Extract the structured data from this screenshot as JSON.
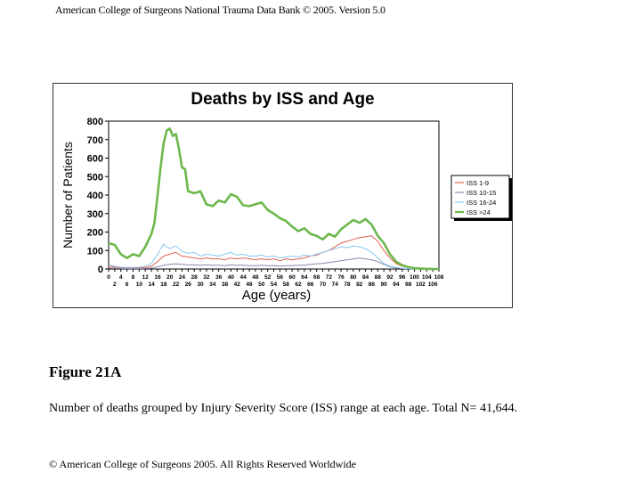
{
  "header": {
    "text": "American College of Surgeons National Trauma Data Bank © 2005. Version 5.0"
  },
  "figure": {
    "label": "Figure 21A",
    "caption": "Number of deaths grouped by Injury Severity Score (ISS) range at each age. Total N= 41,644."
  },
  "footer": {
    "text": "© American College of Surgeons 2005. All Rights Reserved Worldwide"
  },
  "chart_data": {
    "type": "line",
    "title": "Deaths by ISS and Age",
    "xlabel": "Age (years)",
    "ylabel": "Number of Patients",
    "xlim": [
      0,
      108
    ],
    "ylim": [
      0,
      800
    ],
    "yticks": [
      0,
      100,
      200,
      300,
      400,
      500,
      600,
      700,
      800
    ],
    "xticks_top": [
      0,
      4,
      8,
      12,
      16,
      20,
      24,
      28,
      32,
      36,
      40,
      44,
      48,
      52,
      56,
      60,
      64,
      68,
      72,
      76,
      80,
      84,
      88,
      92,
      96,
      100,
      104,
      108
    ],
    "xticks_bottom": [
      2,
      6,
      10,
      14,
      18,
      22,
      26,
      30,
      34,
      38,
      42,
      46,
      50,
      54,
      58,
      62,
      66,
      70,
      74,
      78,
      82,
      86,
      90,
      94,
      98,
      102,
      106
    ],
    "grid": false,
    "legend": "right",
    "series": [
      {
        "name": "ISS 1-9",
        "color": "#e06050",
        "x": [
          0,
          2,
          4,
          6,
          8,
          10,
          12,
          14,
          16,
          18,
          20,
          22,
          24,
          26,
          28,
          30,
          32,
          34,
          36,
          38,
          40,
          42,
          44,
          46,
          48,
          50,
          52,
          54,
          56,
          58,
          60,
          62,
          64,
          66,
          68,
          70,
          72,
          74,
          76,
          78,
          80,
          82,
          84,
          86,
          88,
          90,
          92,
          94,
          96,
          98,
          100,
          102,
          104,
          106,
          108
        ],
        "values": [
          15,
          10,
          8,
          5,
          5,
          5,
          8,
          15,
          40,
          70,
          80,
          90,
          70,
          65,
          60,
          55,
          60,
          55,
          55,
          50,
          60,
          55,
          60,
          55,
          50,
          55,
          50,
          55,
          45,
          55,
          50,
          55,
          60,
          70,
          75,
          90,
          100,
          120,
          140,
          150,
          160,
          170,
          175,
          180,
          150,
          100,
          60,
          30,
          15,
          8,
          4,
          2,
          1,
          0,
          0
        ]
      },
      {
        "name": "ISS 10-15",
        "color": "#8888aa",
        "x": [
          0,
          2,
          4,
          6,
          8,
          10,
          12,
          14,
          16,
          18,
          20,
          22,
          24,
          26,
          28,
          30,
          32,
          34,
          36,
          38,
          40,
          42,
          44,
          46,
          48,
          50,
          52,
          54,
          56,
          58,
          60,
          62,
          64,
          66,
          68,
          70,
          72,
          74,
          76,
          78,
          80,
          82,
          84,
          86,
          88,
          90,
          92,
          94,
          96,
          98,
          100,
          102,
          104,
          106,
          108
        ],
        "values": [
          5,
          4,
          3,
          2,
          2,
          2,
          3,
          5,
          12,
          20,
          25,
          28,
          25,
          22,
          22,
          20,
          22,
          20,
          20,
          18,
          22,
          20,
          20,
          18,
          18,
          20,
          18,
          18,
          16,
          18,
          18,
          20,
          20,
          25,
          28,
          30,
          35,
          40,
          45,
          50,
          55,
          60,
          55,
          50,
          40,
          25,
          12,
          6,
          3,
          2,
          1,
          0,
          0,
          0,
          0
        ]
      },
      {
        "name": "ISS 16-24",
        "color": "#88c8f0",
        "x": [
          0,
          2,
          4,
          6,
          8,
          10,
          12,
          14,
          16,
          18,
          20,
          22,
          24,
          26,
          28,
          30,
          32,
          34,
          36,
          38,
          40,
          42,
          44,
          46,
          48,
          50,
          52,
          54,
          56,
          58,
          60,
          62,
          64,
          66,
          68,
          70,
          72,
          74,
          76,
          78,
          80,
          82,
          84,
          86,
          88,
          90,
          92,
          94,
          96,
          98,
          100,
          102,
          104,
          106,
          108
        ],
        "values": [
          25,
          15,
          10,
          8,
          8,
          10,
          15,
          30,
          80,
          135,
          110,
          125,
          95,
          85,
          90,
          70,
          80,
          75,
          70,
          80,
          90,
          75,
          80,
          70,
          70,
          75,
          65,
          70,
          60,
          65,
          70,
          65,
          75,
          70,
          80,
          90,
          100,
          110,
          120,
          115,
          125,
          120,
          110,
          90,
          60,
          30,
          15,
          8,
          4,
          2,
          1,
          0,
          0,
          0,
          0
        ]
      },
      {
        "name": "ISS >24",
        "color": "#6cb84a",
        "x": [
          0,
          2,
          4,
          6,
          8,
          10,
          12,
          14,
          15,
          16,
          17,
          18,
          19,
          20,
          21,
          22,
          23,
          24,
          25,
          26,
          28,
          30,
          32,
          34,
          36,
          38,
          40,
          42,
          44,
          46,
          48,
          50,
          52,
          54,
          56,
          58,
          60,
          62,
          64,
          66,
          68,
          70,
          72,
          74,
          76,
          78,
          80,
          82,
          84,
          86,
          88,
          90,
          92,
          94,
          96,
          98,
          100,
          102,
          104,
          106,
          108
        ],
        "values": [
          140,
          130,
          80,
          60,
          80,
          70,
          120,
          190,
          250,
          400,
          550,
          680,
          750,
          760,
          720,
          730,
          650,
          550,
          540,
          420,
          410,
          420,
          350,
          340,
          370,
          360,
          405,
          390,
          345,
          340,
          350,
          360,
          320,
          300,
          275,
          260,
          230,
          205,
          220,
          190,
          180,
          160,
          190,
          175,
          215,
          240,
          265,
          250,
          270,
          240,
          180,
          140,
          80,
          40,
          20,
          10,
          5,
          2,
          1,
          0,
          0
        ]
      }
    ]
  }
}
